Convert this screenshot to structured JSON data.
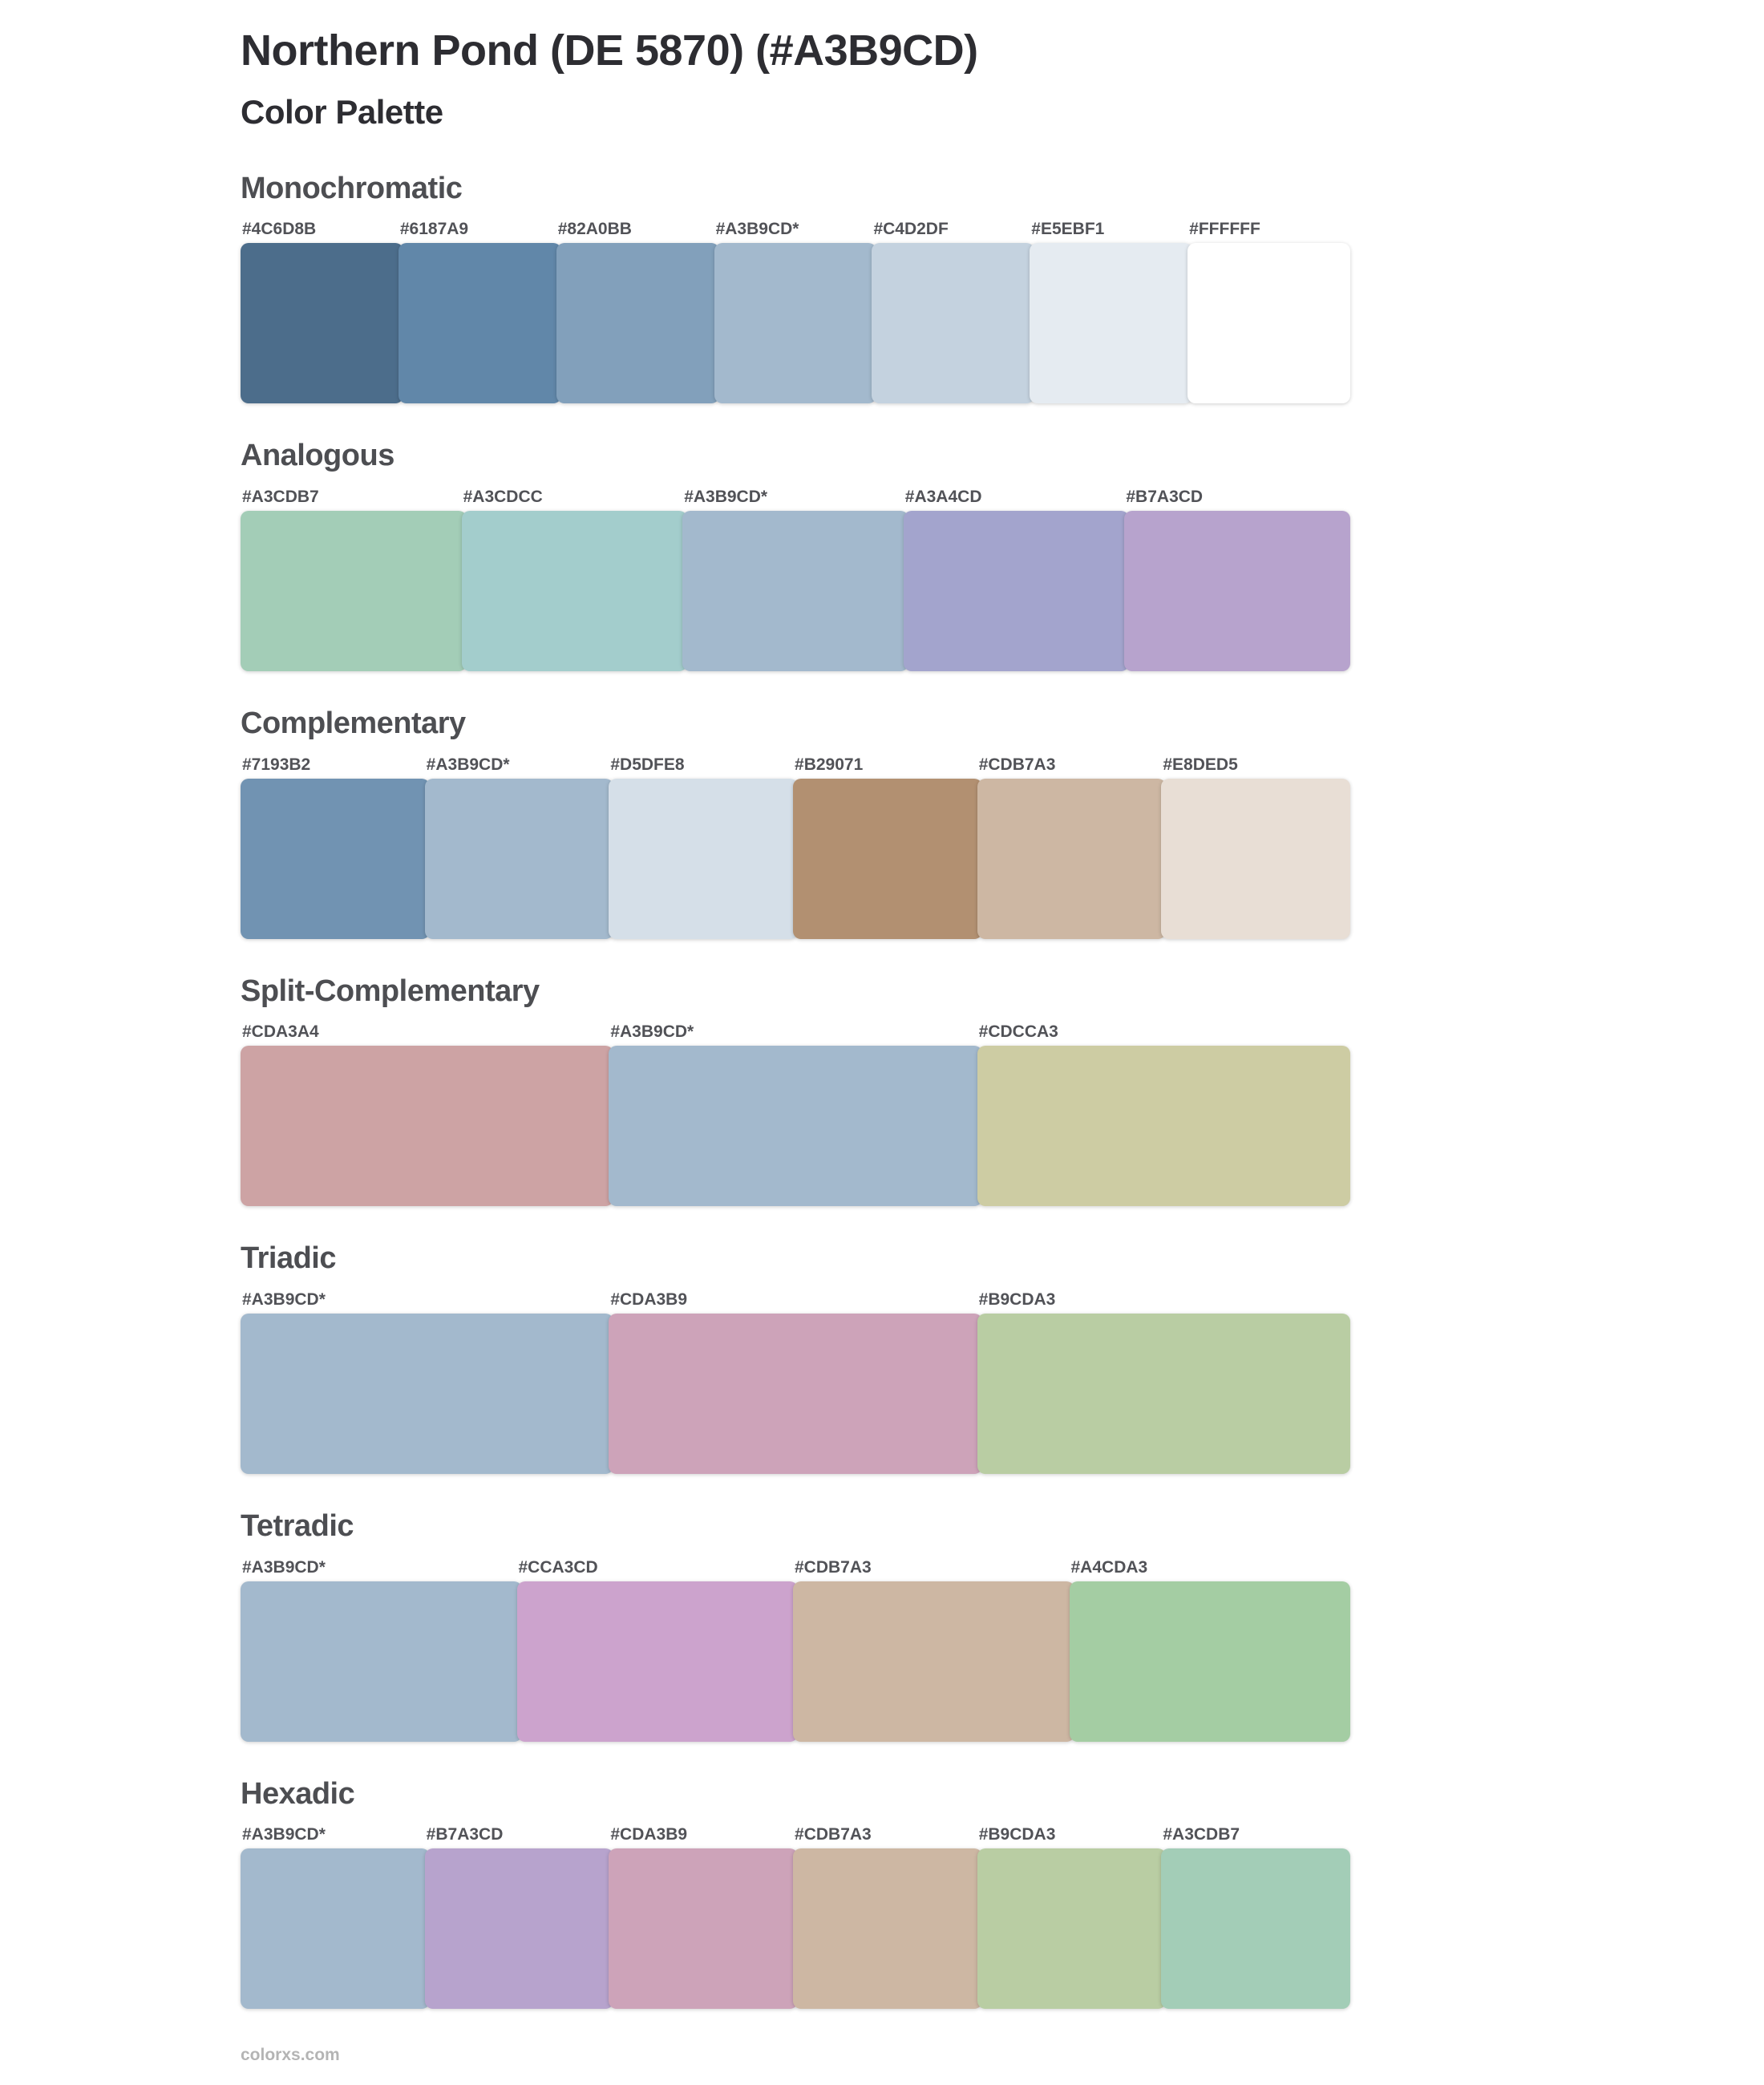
{
  "page": {
    "title": "Northern Pond (DE 5870) (#A3B9CD)",
    "subtitle": "Color Palette",
    "footer": "colorxs.com"
  },
  "base_color": "#A3B9CD",
  "sections": [
    {
      "title": "Monochromatic",
      "swatches": [
        {
          "label": "#4C6D8B",
          "color": "#4C6D8B"
        },
        {
          "label": "#6187A9",
          "color": "#6187A9"
        },
        {
          "label": "#82A0BB",
          "color": "#82A0BB"
        },
        {
          "label": "#A3B9CD*",
          "color": "#A3B9CD"
        },
        {
          "label": "#C4D2DF",
          "color": "#C4D2DF"
        },
        {
          "label": "#E5EBF1",
          "color": "#E5EBF1"
        },
        {
          "label": "#FFFFFF",
          "color": "#FFFFFF"
        }
      ]
    },
    {
      "title": "Analogous",
      "swatches": [
        {
          "label": "#A3CDB7",
          "color": "#A3CDB7"
        },
        {
          "label": "#A3CDCC",
          "color": "#A3CDCC"
        },
        {
          "label": "#A3B9CD*",
          "color": "#A3B9CD"
        },
        {
          "label": "#A3A4CD",
          "color": "#A3A4CD"
        },
        {
          "label": "#B7A3CD",
          "color": "#B7A3CD"
        }
      ]
    },
    {
      "title": "Complementary",
      "swatches": [
        {
          "label": "#7193B2",
          "color": "#7193B2"
        },
        {
          "label": "#A3B9CD*",
          "color": "#A3B9CD"
        },
        {
          "label": "#D5DFE8",
          "color": "#D5DFE8"
        },
        {
          "label": "#B29071",
          "color": "#B29071"
        },
        {
          "label": "#CDB7A3",
          "color": "#CDB7A3"
        },
        {
          "label": "#E8DED5",
          "color": "#E8DED5"
        }
      ]
    },
    {
      "title": "Split-Complementary",
      "swatches": [
        {
          "label": "#CDA3A4",
          "color": "#CDA3A4"
        },
        {
          "label": "#A3B9CD*",
          "color": "#A3B9CD"
        },
        {
          "label": "#CDCCA3",
          "color": "#CDCCA3"
        }
      ]
    },
    {
      "title": "Triadic",
      "swatches": [
        {
          "label": "#A3B9CD*",
          "color": "#A3B9CD"
        },
        {
          "label": "#CDA3B9",
          "color": "#CDA3B9"
        },
        {
          "label": "#B9CDA3",
          "color": "#B9CDA3"
        }
      ]
    },
    {
      "title": "Tetradic",
      "swatches": [
        {
          "label": "#A3B9CD*",
          "color": "#A3B9CD"
        },
        {
          "label": "#CCA3CD",
          "color": "#CCA3CD"
        },
        {
          "label": "#CDB7A3",
          "color": "#CDB7A3"
        },
        {
          "label": "#A4CDA3",
          "color": "#A4CDA3"
        }
      ]
    },
    {
      "title": "Hexadic",
      "swatches": [
        {
          "label": "#A3B9CD*",
          "color": "#A3B9CD"
        },
        {
          "label": "#B7A3CD",
          "color": "#B7A3CD"
        },
        {
          "label": "#CDA3B9",
          "color": "#CDA3B9"
        },
        {
          "label": "#CDB7A3",
          "color": "#CDB7A3"
        },
        {
          "label": "#B9CDA3",
          "color": "#B9CDA3"
        },
        {
          "label": "#A3CDB7",
          "color": "#A3CDB7"
        }
      ]
    }
  ]
}
